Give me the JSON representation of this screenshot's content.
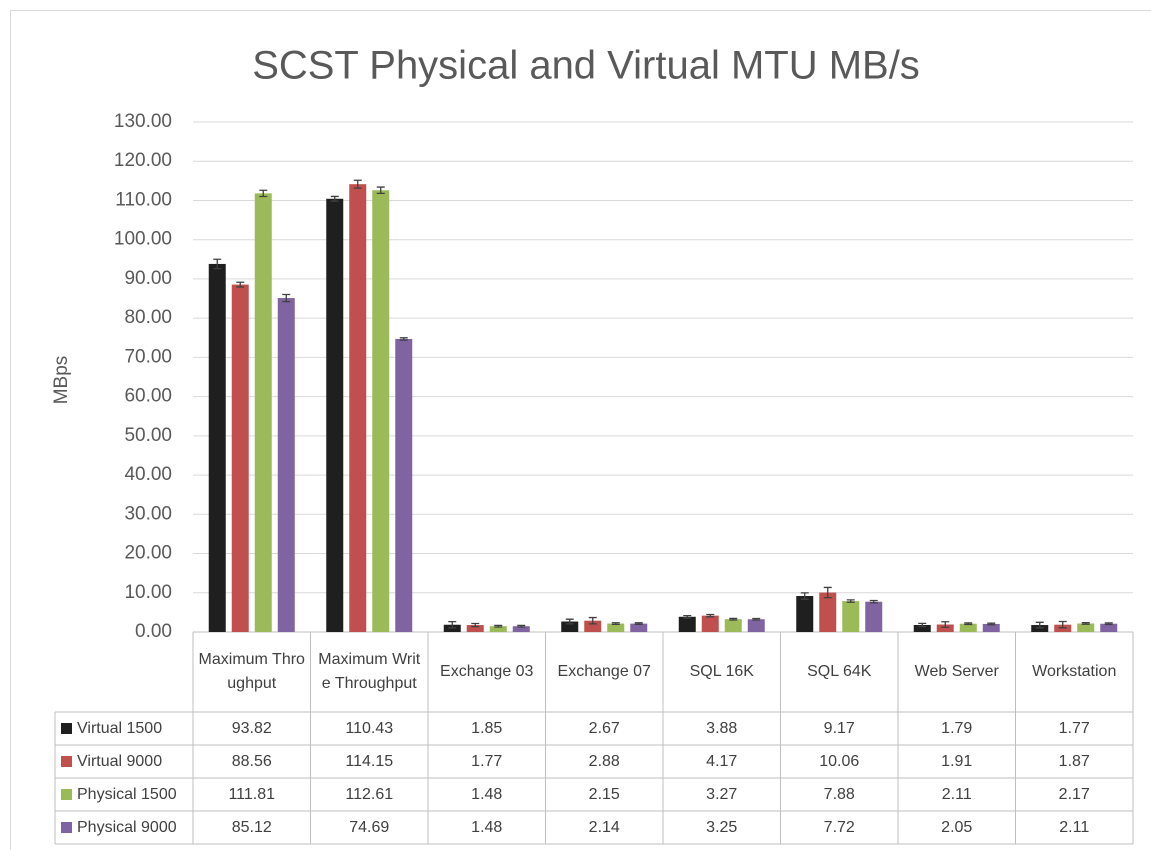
{
  "chart_data": {
    "type": "bar",
    "title": "SCST Physical and Virtual MTU MB/s",
    "y_label": "MBps",
    "categories": [
      "Maximum Throughput",
      "Maximum Write Throughput",
      "Exchange 03",
      "Exchange 07",
      "SQL 16K",
      "SQL 64K",
      "Web Server",
      "Workstation"
    ],
    "series": [
      {
        "name": "Virtual 1500",
        "color": "#1f1f1f",
        "values": [
          93.82,
          110.43,
          1.85,
          2.67,
          3.88,
          9.17,
          1.79,
          1.77
        ],
        "errors": [
          1.2,
          0.6,
          0.8,
          0.6,
          0.3,
          0.8,
          0.4,
          0.7
        ]
      },
      {
        "name": "Virtual 9000",
        "color": "#c0504d",
        "values": [
          88.56,
          114.15,
          1.77,
          2.88,
          4.17,
          10.06,
          1.91,
          1.87
        ],
        "errors": [
          0.6,
          1.0,
          0.4,
          0.8,
          0.3,
          1.3,
          0.7,
          0.8
        ]
      },
      {
        "name": "Physical 1500",
        "color": "#9bbb59",
        "values": [
          111.81,
          112.61,
          1.48,
          2.15,
          3.27,
          7.88,
          2.11,
          2.17
        ],
        "errors": [
          0.8,
          0.8,
          0.2,
          0.2,
          0.2,
          0.3,
          0.2,
          0.2
        ]
      },
      {
        "name": "Physical 9000",
        "color": "#8064a2",
        "values": [
          85.12,
          74.69,
          1.48,
          2.14,
          3.25,
          7.72,
          2.05,
          2.11
        ],
        "errors": [
          0.9,
          0.3,
          0.2,
          0.2,
          0.2,
          0.3,
          0.2,
          0.2
        ]
      }
    ],
    "ylim": [
      0,
      130
    ],
    "yticks": [
      {
        "value": 0,
        "label": "0.00"
      },
      {
        "value": 10,
        "label": "10.00"
      },
      {
        "value": 20,
        "label": "20.00"
      },
      {
        "value": 30,
        "label": "30.00"
      },
      {
        "value": 40,
        "label": "40.00"
      },
      {
        "value": 50,
        "label": "50.00"
      },
      {
        "value": 60,
        "label": "60.00"
      },
      {
        "value": 70,
        "label": "70.00"
      },
      {
        "value": 80,
        "label": "80.00"
      },
      {
        "value": 90,
        "label": "90.00"
      },
      {
        "value": 100,
        "label": "100.00"
      },
      {
        "value": 110,
        "label": "110.00"
      },
      {
        "value": 120,
        "label": "120.00"
      },
      {
        "value": 130,
        "label": "130.00"
      }
    ],
    "grid": true
  }
}
